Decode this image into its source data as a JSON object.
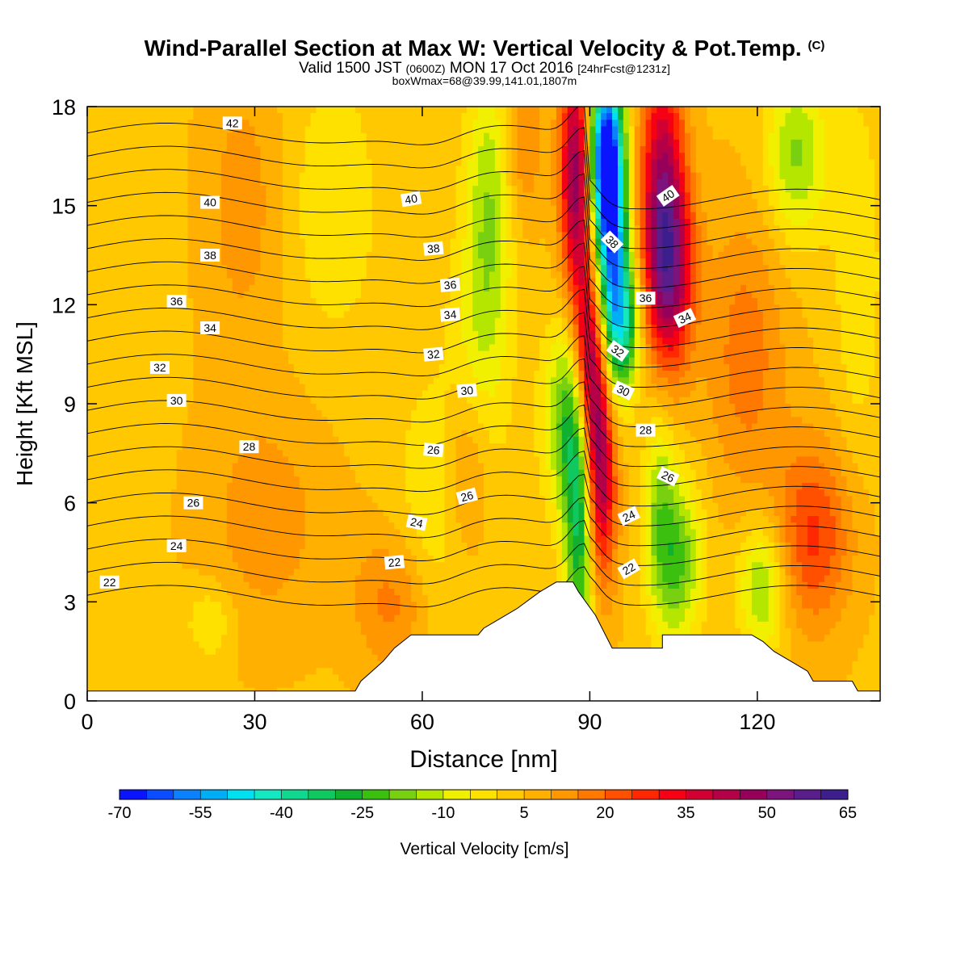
{
  "chart_data": {
    "type": "heatmap",
    "title": {
      "main": "Wind-Parallel Section at Max W: Vertical Velocity & Pot.Temp.",
      "main_mark": "(C)",
      "valid_a": "Valid 1500 JST",
      "valid_b": "(0600Z)",
      "valid_c": "MON 17 Oct 2016",
      "valid_d": "[24hrFcst@1231z]",
      "sub": "boxWmax=68@39.99,141.01,1807m"
    },
    "xlabel": "Distance [nm]",
    "ylabel": "Height [Kft MSL]",
    "xlim": [
      0,
      142
    ],
    "ylim": [
      0,
      18
    ],
    "x_ticks": [
      "0",
      "30",
      "60",
      "90",
      "120"
    ],
    "y_ticks": [
      "0",
      "3",
      "6",
      "9",
      "12",
      "15",
      "18"
    ],
    "terrain": [
      [
        0,
        0.3
      ],
      [
        48,
        0.3
      ],
      [
        49,
        0.6
      ],
      [
        51,
        0.9
      ],
      [
        53,
        1.2
      ],
      [
        55,
        1.6
      ],
      [
        58,
        2.0
      ],
      [
        70,
        2.0
      ],
      [
        71,
        2.2
      ],
      [
        74,
        2.5
      ],
      [
        77,
        2.8
      ],
      [
        81,
        3.3
      ],
      [
        84,
        3.6
      ],
      [
        87,
        3.6
      ],
      [
        88,
        3.3
      ],
      [
        91,
        2.6
      ],
      [
        94,
        1.6
      ],
      [
        103,
        1.6
      ],
      [
        103,
        2.0
      ],
      [
        119,
        2.0
      ],
      [
        121,
        1.8
      ],
      [
        123,
        1.5
      ],
      [
        126,
        1.2
      ],
      [
        129,
        0.9
      ],
      [
        130,
        0.6
      ],
      [
        137,
        0.6
      ],
      [
        138,
        0.3
      ],
      [
        142,
        0.3
      ]
    ],
    "w_field": {
      "background": 4,
      "features": [
        {
          "x": 88.5,
          "y": 6.0,
          "sx": 2.0,
          "sy": 3.2,
          "w": -45
        },
        {
          "x": 86.0,
          "y": 8.6,
          "sx": 3.0,
          "sy": 2.0,
          "w": -24
        },
        {
          "x": 91.5,
          "y": 7.2,
          "sx": 2.2,
          "sy": 2.6,
          "w": 52
        },
        {
          "x": 89.5,
          "y": 10.4,
          "sx": 2.0,
          "sy": 2.2,
          "w": 42
        },
        {
          "x": 94.0,
          "y": 13.8,
          "sx": 2.0,
          "sy": 3.0,
          "w": -60
        },
        {
          "x": 92.5,
          "y": 16.6,
          "sx": 2.0,
          "sy": 1.8,
          "w": -55
        },
        {
          "x": 96.5,
          "y": 11.4,
          "sx": 2.0,
          "sy": 1.4,
          "w": -28
        },
        {
          "x": 87.5,
          "y": 16.0,
          "sx": 2.0,
          "sy": 2.5,
          "w": 45
        },
        {
          "x": 103.0,
          "y": 15.2,
          "sx": 2.8,
          "sy": 3.2,
          "w": 40
        },
        {
          "x": 105.0,
          "y": 13.0,
          "sx": 3.0,
          "sy": 2.0,
          "w": 28
        },
        {
          "x": 105.5,
          "y": 4.3,
          "sx": 3.2,
          "sy": 1.8,
          "w": -25
        },
        {
          "x": 102.5,
          "y": 6.5,
          "sx": 2.0,
          "sy": 2.2,
          "w": -14
        },
        {
          "x": 121.0,
          "y": 3.5,
          "sx": 3.0,
          "sy": 1.4,
          "w": -22
        },
        {
          "x": 127.0,
          "y": 16.5,
          "sx": 4.0,
          "sy": 1.8,
          "w": -20
        },
        {
          "x": 72.0,
          "y": 15.0,
          "sx": 3.0,
          "sy": 3.0,
          "w": -18
        },
        {
          "x": 70.0,
          "y": 10.0,
          "sx": 4.0,
          "sy": 3.0,
          "w": -10
        },
        {
          "x": 62.0,
          "y": 5.5,
          "sx": 5.0,
          "sy": 3.0,
          "w": -9
        },
        {
          "x": 44.0,
          "y": 15.0,
          "sx": 6.0,
          "sy": 3.0,
          "w": -8
        },
        {
          "x": 22.0,
          "y": 2.4,
          "sx": 3.0,
          "sy": 0.8,
          "w": -10
        },
        {
          "x": 68.0,
          "y": 7.0,
          "sx": 3.0,
          "sy": 2.0,
          "w": 14
        },
        {
          "x": 55.0,
          "y": 3.0,
          "sx": 5.0,
          "sy": 1.5,
          "w": 14
        },
        {
          "x": 32.0,
          "y": 5.5,
          "sx": 8.0,
          "sy": 2.5,
          "w": 9
        },
        {
          "x": 28.0,
          "y": 15.0,
          "sx": 5.0,
          "sy": 3.0,
          "w": 9
        },
        {
          "x": 130.0,
          "y": 5.0,
          "sx": 5.0,
          "sy": 2.0,
          "w": 22
        },
        {
          "x": 118.0,
          "y": 10.5,
          "sx": 5.0,
          "sy": 3.0,
          "w": 14
        },
        {
          "x": 138.0,
          "y": 13.0,
          "sx": 3.0,
          "sy": 4.0,
          "w": -8
        },
        {
          "x": 78.0,
          "y": 17.0,
          "sx": 2.5,
          "sy": 1.8,
          "w": 12
        }
      ]
    },
    "theta_contours": {
      "levels": [
        22,
        23,
        24,
        25,
        26,
        27,
        28,
        29,
        30,
        31,
        32,
        33,
        34,
        35,
        36,
        37,
        38,
        39,
        40,
        41,
        42
      ],
      "base_height_kft": 3.2,
      "kft_per_degree_left": 0.7,
      "kft_per_degree_right": 0.6,
      "labels": [
        {
          "text": "22",
          "x": 4,
          "y": 3.6,
          "rot": 0
        },
        {
          "text": "24",
          "x": 16,
          "y": 4.7,
          "rot": 0
        },
        {
          "text": "26",
          "x": 19,
          "y": 6.0,
          "rot": 0
        },
        {
          "text": "28",
          "x": 29,
          "y": 7.7,
          "rot": 0
        },
        {
          "text": "30",
          "x": 16,
          "y": 9.1,
          "rot": 0
        },
        {
          "text": "32",
          "x": 13,
          "y": 10.1,
          "rot": 0
        },
        {
          "text": "34",
          "x": 22,
          "y": 11.3,
          "rot": 0
        },
        {
          "text": "36",
          "x": 16,
          "y": 12.1,
          "rot": 0
        },
        {
          "text": "38",
          "x": 22,
          "y": 13.5,
          "rot": 0
        },
        {
          "text": "40",
          "x": 22,
          "y": 15.1,
          "rot": 0
        },
        {
          "text": "42",
          "x": 26,
          "y": 17.5,
          "rot": 0
        },
        {
          "text": "22",
          "x": 55,
          "y": 4.2,
          "rot": -5
        },
        {
          "text": "24",
          "x": 59,
          "y": 5.4,
          "rot": 12
        },
        {
          "text": "26",
          "x": 68,
          "y": 6.2,
          "rot": -15
        },
        {
          "text": "26",
          "x": 62,
          "y": 7.6,
          "rot": 5
        },
        {
          "text": "30",
          "x": 68,
          "y": 9.4,
          "rot": -5
        },
        {
          "text": "32",
          "x": 62,
          "y": 10.5,
          "rot": -5
        },
        {
          "text": "34",
          "x": 65,
          "y": 11.7,
          "rot": -5
        },
        {
          "text": "36",
          "x": 65,
          "y": 12.6,
          "rot": -5
        },
        {
          "text": "38",
          "x": 62,
          "y": 13.7,
          "rot": -5
        },
        {
          "text": "40",
          "x": 58,
          "y": 15.2,
          "rot": -10
        },
        {
          "text": "22",
          "x": 97,
          "y": 4.0,
          "rot": -30
        },
        {
          "text": "24",
          "x": 97,
          "y": 5.6,
          "rot": -25
        },
        {
          "text": "26",
          "x": 104,
          "y": 6.8,
          "rot": 25
        },
        {
          "text": "28",
          "x": 100,
          "y": 8.2,
          "rot": 0
        },
        {
          "text": "30",
          "x": 96,
          "y": 9.4,
          "rot": 25
        },
        {
          "text": "32",
          "x": 95,
          "y": 10.6,
          "rot": 35
        },
        {
          "text": "34",
          "x": 107,
          "y": 11.6,
          "rot": -25
        },
        {
          "text": "36",
          "x": 100,
          "y": 12.2,
          "rot": 0
        },
        {
          "text": "38",
          "x": 94,
          "y": 13.9,
          "rot": 45
        },
        {
          "text": "40",
          "x": 104,
          "y": 15.3,
          "rot": -35
        }
      ]
    },
    "colorbar": {
      "label": "Vertical Velocity [cm/s]",
      "tick_labels": [
        "-70",
        "-55",
        "-40",
        "-25",
        "-10",
        "5",
        "20",
        "35",
        "50",
        "65"
      ],
      "bounds": [
        -70,
        65
      ],
      "colors": [
        "#0a14ff",
        "#0a4cff",
        "#0a82ff",
        "#00aef5",
        "#00e0f0",
        "#14e8c0",
        "#10d890",
        "#10c860",
        "#10b030",
        "#3cc010",
        "#78d010",
        "#b4e600",
        "#f0f000",
        "#ffe100",
        "#ffc800",
        "#ffb000",
        "#ff9800",
        "#ff7800",
        "#ff5000",
        "#ff2800",
        "#f50014",
        "#d20032",
        "#b40046",
        "#96005a",
        "#7d147d",
        "#5a1e8c",
        "#3c1e8c"
      ]
    }
  }
}
